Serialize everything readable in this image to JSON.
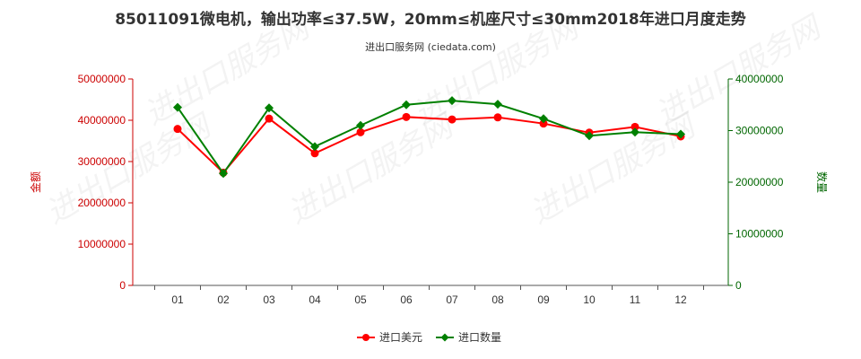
{
  "title": "85011091微电机，输出功率≤37.5W，20mm≤机座尺寸≤30mm2018年进口月度走势",
  "subtitle": "进出口服务网 (ciedata.com)",
  "watermark": "进出口服务网",
  "colors": {
    "amount": "#ff0000",
    "quantity": "#008000",
    "axis_left": "#cc0000",
    "axis_right": "#006600"
  },
  "chart_data": {
    "type": "line",
    "categories": [
      "01",
      "02",
      "03",
      "04",
      "05",
      "06",
      "07",
      "08",
      "09",
      "10",
      "11",
      "12"
    ],
    "y_left": {
      "label": "金额",
      "ylim": [
        0,
        50000000
      ],
      "ticks": [
        "0",
        "10000000",
        "20000000",
        "30000000",
        "40000000",
        "50000000"
      ]
    },
    "y_right": {
      "label": "数量",
      "ylim": [
        0,
        40000000
      ],
      "ticks": [
        "0",
        "10000000",
        "20000000",
        "30000000",
        "40000000"
      ]
    },
    "series": [
      {
        "name": "进口美元",
        "axis": "left",
        "values": [
          37900000,
          27300000,
          40400000,
          32000000,
          37100000,
          40800000,
          40200000,
          40700000,
          39200000,
          37000000,
          38400000,
          36100000
        ]
      },
      {
        "name": "进口数量",
        "axis": "right",
        "values": [
          34500000,
          21700000,
          34400000,
          26900000,
          31000000,
          35000000,
          35800000,
          35100000,
          32300000,
          29000000,
          29700000,
          29300000
        ]
      }
    ],
    "legend_position": "bottom",
    "grid": false
  }
}
